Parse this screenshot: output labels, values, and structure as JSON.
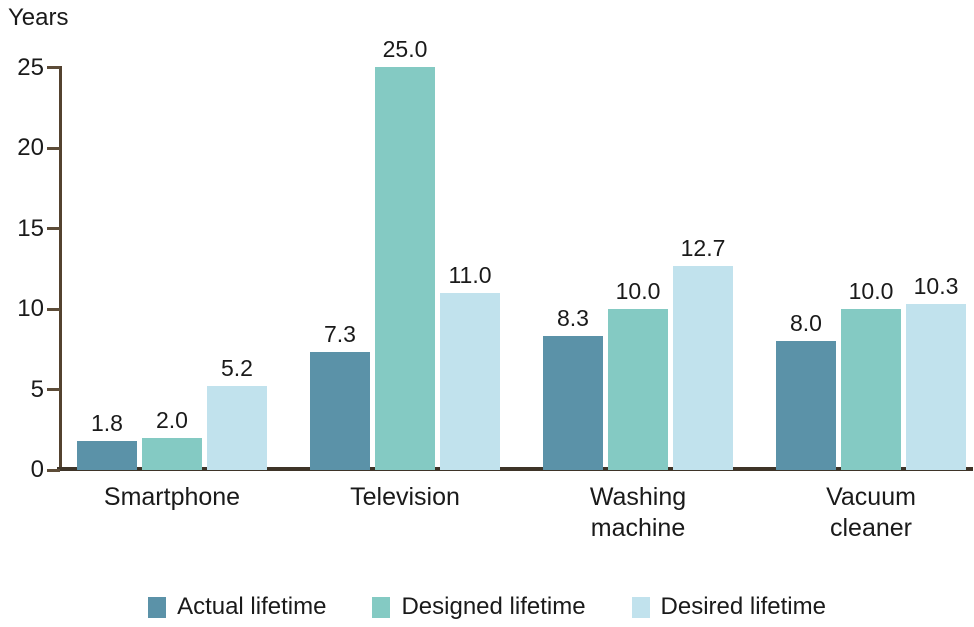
{
  "chart_data": {
    "type": "bar",
    "title": "",
    "ylabel": "Years",
    "xlabel": "",
    "categories": [
      "Smartphone",
      "Television",
      "Washing machine",
      "Vacuum cleaner"
    ],
    "series": [
      {
        "name": "Actual lifetime",
        "color": "#5b92a8",
        "values": [
          1.8,
          7.3,
          8.3,
          8.0
        ]
      },
      {
        "name": "Designed lifetime",
        "color": "#84cac3",
        "values": [
          2.0,
          25.0,
          10.0,
          10.0
        ]
      },
      {
        "name": "Desired lifetime",
        "color": "#c1e2ed",
        "values": [
          5.2,
          11.0,
          12.7,
          10.3
        ]
      }
    ],
    "yticks": [
      0,
      5,
      10,
      15,
      20,
      25
    ],
    "ylim": [
      0,
      25
    ],
    "grid": false,
    "legend_position": "bottom",
    "value_labels": true,
    "value_label_format": "one-decimal"
  },
  "colors": {
    "axis_line": "#53422f",
    "tick_mark": "#5d4c38",
    "baseline": "#3e3428",
    "text": "#1a1a1a",
    "background": "#ffffff"
  }
}
